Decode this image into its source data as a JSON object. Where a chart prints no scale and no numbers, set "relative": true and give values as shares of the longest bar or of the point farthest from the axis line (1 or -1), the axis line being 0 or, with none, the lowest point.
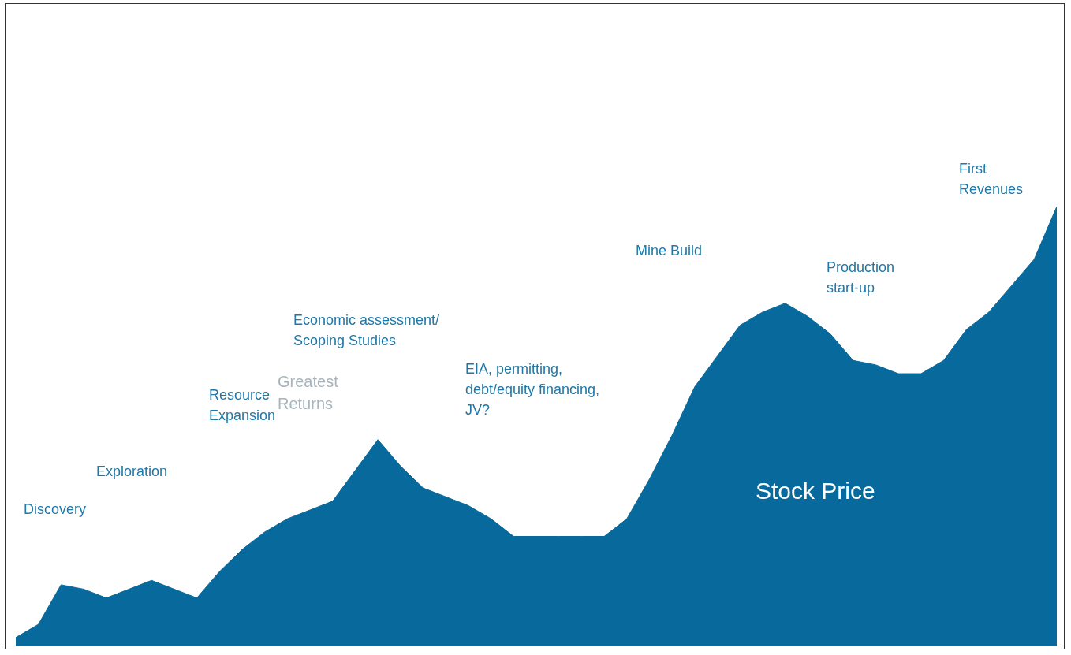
{
  "chart_data": {
    "type": "area",
    "relative": true,
    "color": "#086a9c",
    "categories": [
      null,
      null,
      null,
      null,
      null,
      null,
      null,
      null,
      null,
      null,
      null,
      null,
      null,
      null,
      null,
      null,
      null,
      null,
      null,
      null,
      null,
      null,
      null,
      null,
      null,
      null,
      null,
      null,
      null,
      null,
      null,
      null,
      null,
      null,
      null,
      null,
      null,
      null,
      null,
      null,
      null,
      null,
      null,
      null,
      null,
      null,
      null
    ],
    "values": [
      0.02,
      0.05,
      0.14,
      0.13,
      0.11,
      0.13,
      0.15,
      0.13,
      0.11,
      0.17,
      0.22,
      0.26,
      0.29,
      0.31,
      0.33,
      0.4,
      0.47,
      0.41,
      0.36,
      0.34,
      0.32,
      0.29,
      0.25,
      0.25,
      0.25,
      0.25,
      0.25,
      0.29,
      0.38,
      0.48,
      0.59,
      0.66,
      0.73,
      0.76,
      0.78,
      0.75,
      0.71,
      0.65,
      0.64,
      0.62,
      0.62,
      0.65,
      0.72,
      0.76,
      0.82,
      0.88,
      1
    ],
    "annotations": [
      "Discovery",
      "Exploration",
      "Resource\nExpansion",
      "Greatest\nReturns",
      "Economic assessment/\nScoping Studies",
      "EIA, permitting,\ndebt/equity financing,\nJV?",
      "Mine Build",
      "Production\nstart-up",
      "First\nRevenues",
      "Stock Price"
    ]
  }
}
